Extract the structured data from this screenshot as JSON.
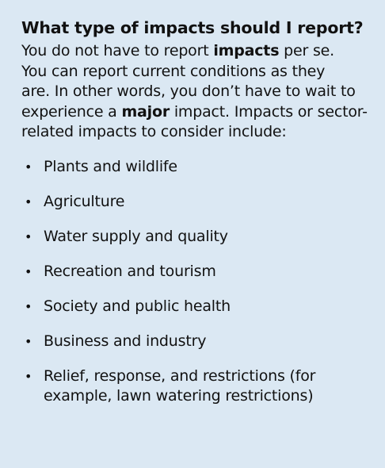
{
  "box": {
    "background_color": "#dbe8f3",
    "title": "What type of impacts should I report?",
    "intro_lines": [
      {
        "before": "You do not have to report ",
        "bold": "impacts",
        "after": " per se."
      },
      {
        "before": "You can report current conditions as they",
        "bold": "",
        "after": ""
      },
      {
        "before": "are. In other words, you don’t have to wait to",
        "bold": "",
        "after": ""
      },
      {
        "before": "experience a ",
        "bold": "major",
        "after": " impact. Impacts or sector-"
      },
      {
        "before": "related impacts to consider include:",
        "bold": "",
        "after": ""
      }
    ],
    "bullet_symbol": "•",
    "items": [
      {
        "line1": "Plants and wildlife",
        "line2": ""
      },
      {
        "line1": "Agriculture",
        "line2": ""
      },
      {
        "line1": "Water supply and quality",
        "line2": ""
      },
      {
        "line1": "Recreation and tourism",
        "line2": ""
      },
      {
        "line1": "Society and public health",
        "line2": ""
      },
      {
        "line1": "Business and industry",
        "line2": ""
      },
      {
        "line1": "Relief, response, and restrictions (for",
        "line2": "example, lawn watering restrictions)"
      }
    ]
  }
}
